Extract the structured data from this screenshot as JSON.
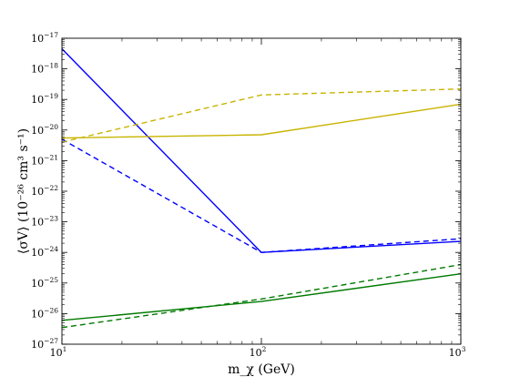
{
  "chart_data": {
    "type": "line",
    "title": "",
    "xlabel": "m_χ (GeV)",
    "ylabel": "⟨σV⟩ (10⁻²⁶ cm³ s⁻¹)",
    "xscale": "log",
    "yscale": "log",
    "xlim": [
      10,
      1000
    ],
    "ylim": [
      1e-27,
      1e-17
    ],
    "grid": false,
    "legend": "none",
    "x_ticks": [
      {
        "value": 10,
        "base": "10",
        "exp": "1"
      },
      {
        "value": 100,
        "base": "10",
        "exp": "2"
      },
      {
        "value": 1000,
        "base": "10",
        "exp": "3"
      }
    ],
    "y_ticks": [
      {
        "value": 1e-27,
        "base": "10",
        "exp": "−27"
      },
      {
        "value": 1e-26,
        "base": "10",
        "exp": "−26"
      },
      {
        "value": 1e-25,
        "base": "10",
        "exp": "−25"
      },
      {
        "value": 1e-24,
        "base": "10",
        "exp": "−24"
      },
      {
        "value": 1e-23,
        "base": "10",
        "exp": "−23"
      },
      {
        "value": 1e-22,
        "base": "10",
        "exp": "−22"
      },
      {
        "value": 1e-21,
        "base": "10",
        "exp": "−21"
      },
      {
        "value": 1e-20,
        "base": "10",
        "exp": "−20"
      },
      {
        "value": 1e-19,
        "base": "10",
        "exp": "−19"
      },
      {
        "value": 1e-18,
        "base": "10",
        "exp": "−18"
      },
      {
        "value": 1e-17,
        "base": "10",
        "exp": "−17"
      }
    ],
    "series": [
      {
        "color": "#0000ff",
        "style": "solid",
        "x": [
          10,
          100,
          1000
        ],
        "y": [
          4.5e-18,
          1e-24,
          2.3e-24
        ]
      },
      {
        "color": "#0000ff",
        "style": "dashed",
        "x": [
          10,
          100,
          1000
        ],
        "y": [
          5e-21,
          1e-24,
          2.8e-24
        ]
      },
      {
        "color": "#c8b400",
        "style": "solid",
        "x": [
          10,
          100,
          1000
        ],
        "y": [
          5.5e-21,
          7e-21,
          7e-20
        ]
      },
      {
        "color": "#c8b400",
        "style": "dashed",
        "x": [
          10,
          100,
          1000
        ],
        "y": [
          4e-21,
          1.4e-19,
          2.2e-19
        ]
      },
      {
        "color": "#007a00",
        "style": "solid",
        "x": [
          10,
          100,
          1000
        ],
        "y": [
          6e-27,
          2.5e-26,
          2e-25
        ]
      },
      {
        "color": "#007a00",
        "style": "dashed",
        "x": [
          10,
          100,
          1000
        ],
        "y": [
          3.5e-27,
          3e-26,
          4e-25
        ]
      }
    ]
  }
}
